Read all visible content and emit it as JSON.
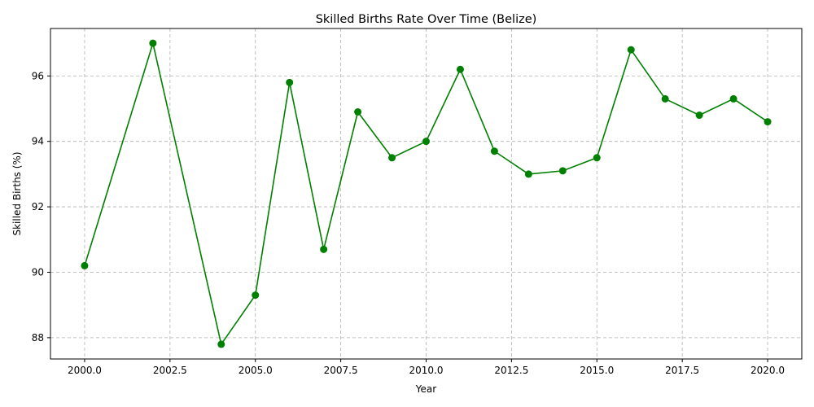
{
  "chart_data": {
    "type": "line",
    "title": "Skilled Births Rate Over Time (Belize)",
    "xlabel": "Year",
    "ylabel": "Skilled Births (%)",
    "xlim": [
      1999.0,
      2021.0
    ],
    "ylim": [
      87.35,
      97.45
    ],
    "x_ticks": [
      "2000.0",
      "2002.5",
      "2005.0",
      "2007.5",
      "2010.0",
      "2012.5",
      "2015.0",
      "2017.5",
      "2020.0"
    ],
    "y_ticks": [
      "88",
      "90",
      "92",
      "94",
      "96"
    ],
    "grid": true,
    "line_color": "#008000",
    "series": [
      {
        "x": [
          2000,
          2002,
          2004,
          2005,
          2006,
          2007,
          2008,
          2009,
          2010,
          2011,
          2012,
          2013,
          2014,
          2015,
          2016,
          2017,
          2018,
          2019,
          2020
        ],
        "values": [
          90.2,
          97.0,
          87.8,
          89.3,
          95.8,
          90.7,
          94.9,
          93.5,
          94.0,
          96.2,
          93.7,
          93.0,
          93.1,
          93.5,
          96.8,
          95.3,
          94.8,
          95.3,
          94.6
        ]
      }
    ]
  }
}
